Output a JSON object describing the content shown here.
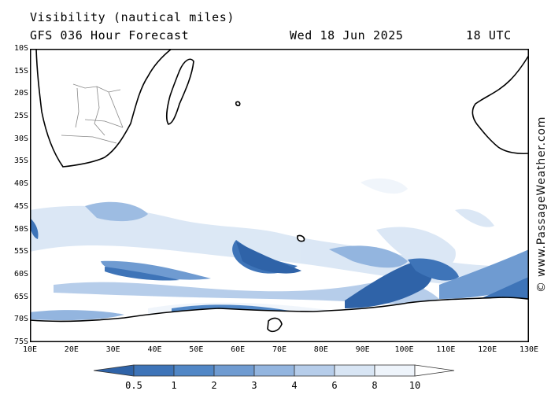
{
  "header": {
    "title": "Visibility (nautical miles)",
    "forecast": "GFS 036 Hour Forecast",
    "date": "Wed 18 Jun 2025",
    "time": "18 UTC"
  },
  "credit": "© www.PassageWeather.com",
  "map": {
    "lon_range": [
      10,
      130
    ],
    "lat_range": [
      -10,
      -75
    ],
    "lat_labels": [
      "10S",
      "15S",
      "20S",
      "25S",
      "30S",
      "35S",
      "40S",
      "45S",
      "50S",
      "55S",
      "60S",
      "65S",
      "70S",
      "75S"
    ],
    "lon_labels": [
      "10E",
      "20E",
      "30E",
      "40E",
      "50E",
      "60E",
      "70E",
      "80E",
      "90E",
      "100E",
      "110E",
      "120E",
      "130E"
    ]
  },
  "legend": {
    "labels": [
      "0.5",
      "1",
      "2",
      "3",
      "4",
      "6",
      "8",
      "10"
    ],
    "colors": [
      "#2f63a8",
      "#3e74b8",
      "#5187c6",
      "#6f9bd1",
      "#93b5df",
      "#b6cdea",
      "#d8e5f4",
      "#eef4fb",
      "#ffffff"
    ]
  }
}
